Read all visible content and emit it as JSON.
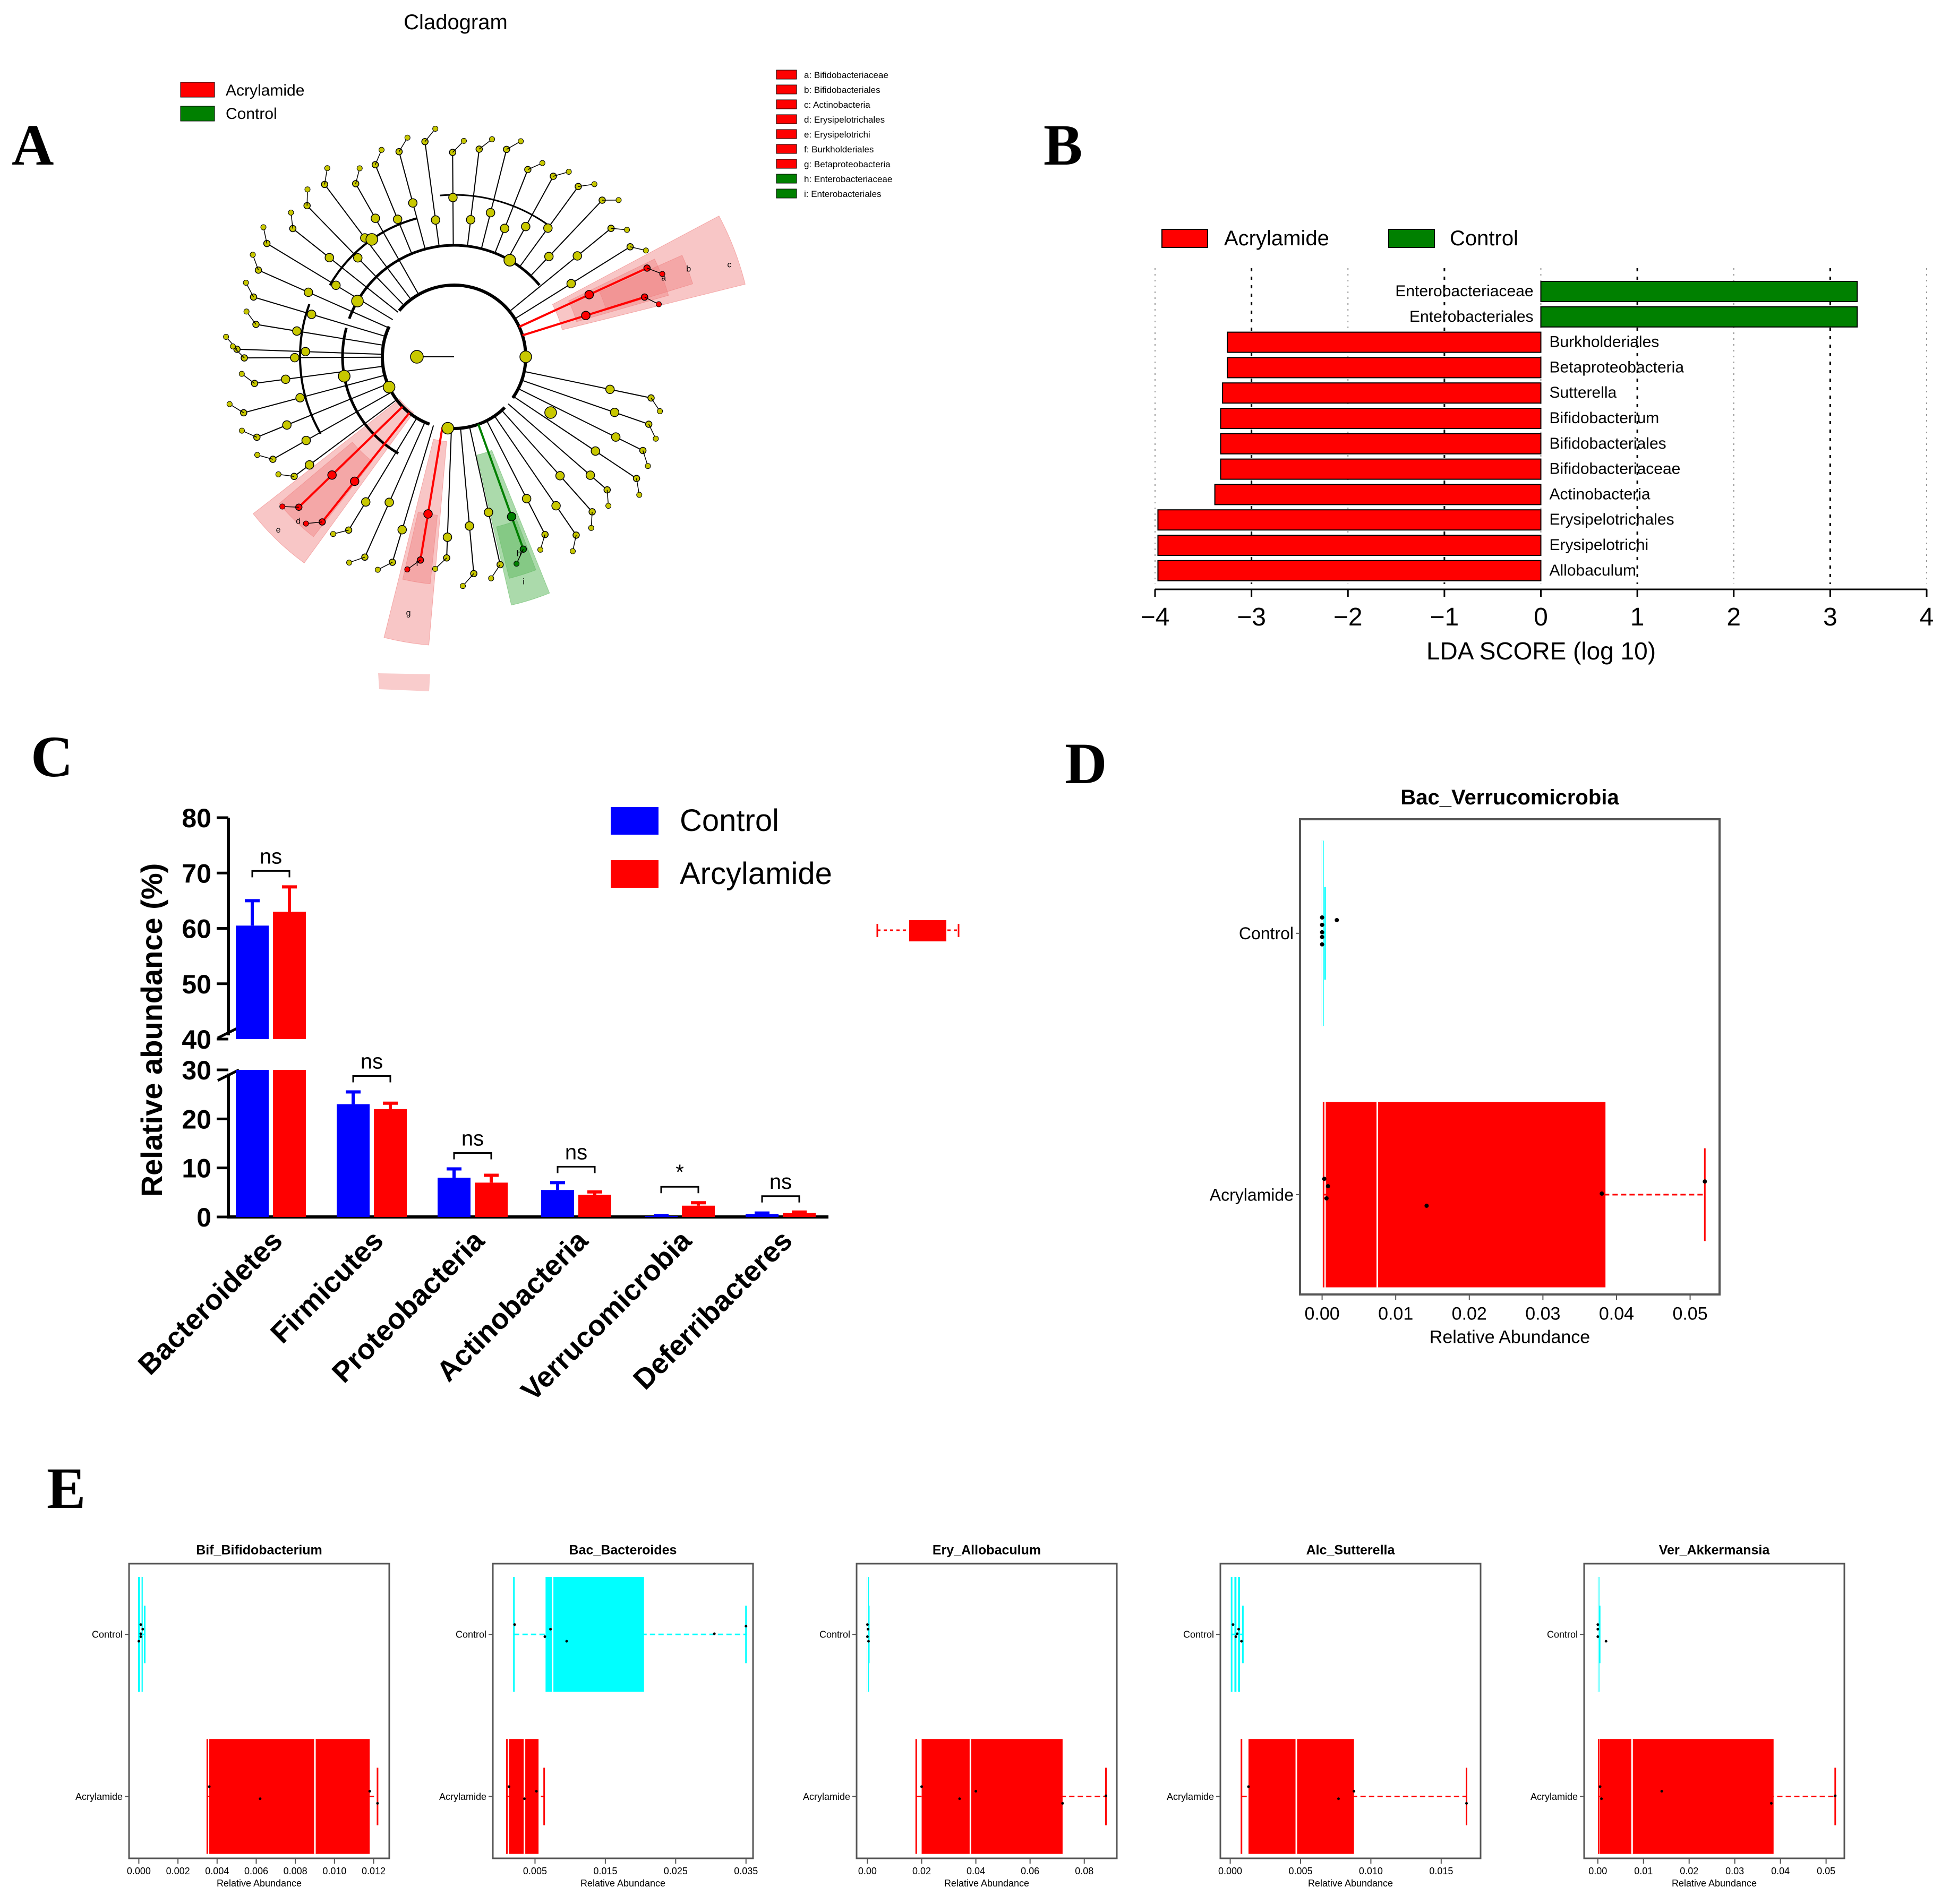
{
  "colors": {
    "acrylamide": "#ff0000",
    "control": "#008000",
    "control_bar": "#0000ff",
    "box_control": "#00ffff",
    "node": "#c8c800",
    "highlight_red": "#f08080",
    "highlight_green": "#66bb66"
  },
  "panels": {
    "A": "A",
    "B": "B",
    "C": "C",
    "D": "D",
    "E": "E"
  },
  "panel_a": {
    "title": "Cladogram",
    "legend": [
      "Acrylamide",
      "Control"
    ],
    "taxa_key": [
      {
        "label": "a: Bifidobacteriaceae",
        "group": "Acrylamide"
      },
      {
        "label": "b: Bifidobacteriales",
        "group": "Acrylamide"
      },
      {
        "label": "c: Actinobacteria",
        "group": "Acrylamide"
      },
      {
        "label": "d: Erysipelotrichales",
        "group": "Acrylamide"
      },
      {
        "label": "e: Erysipelotrichi",
        "group": "Acrylamide"
      },
      {
        "label": "f: Burkholderiales",
        "group": "Acrylamide"
      },
      {
        "label": "g: Betaproteobacteria",
        "group": "Acrylamide"
      },
      {
        "label": "h: Enterobacteriaceae",
        "group": "Control"
      },
      {
        "label": "i: Enterobacteriales",
        "group": "Control"
      }
    ],
    "wedge_letters": [
      "a",
      "b",
      "c",
      "d",
      "e",
      "f",
      "g",
      "h",
      "i"
    ]
  },
  "chart_data": [
    {
      "id": "B",
      "type": "bar",
      "orientation": "horizontal",
      "legend": [
        "Acrylamide",
        "Control"
      ],
      "xlabel": "LDA SCORE (log 10)",
      "xlim": [
        -4,
        4
      ],
      "xticks": [
        -4,
        -3,
        -2,
        -1,
        0,
        1,
        2,
        3,
        4
      ],
      "bars": [
        {
          "label": "Enterobacteriaceae",
          "value": 3.28,
          "group": "Control"
        },
        {
          "label": "Enterobacteriales",
          "value": 3.28,
          "group": "Control"
        },
        {
          "label": "Burkholderiales",
          "value": -3.25,
          "group": "Acrylamide"
        },
        {
          "label": "Betaproteobacteria",
          "value": -3.25,
          "group": "Acrylamide"
        },
        {
          "label": "Sutterella",
          "value": -3.3,
          "group": "Acrylamide"
        },
        {
          "label": "Bifidobacterium",
          "value": -3.32,
          "group": "Acrylamide"
        },
        {
          "label": "Bifidobacteriales",
          "value": -3.32,
          "group": "Acrylamide"
        },
        {
          "label": "Bifidobacteriaceae",
          "value": -3.32,
          "group": "Acrylamide"
        },
        {
          "label": "Actinobacteria",
          "value": -3.38,
          "group": "Acrylamide"
        },
        {
          "label": "Erysipelotrichales",
          "value": -3.97,
          "group": "Acrylamide"
        },
        {
          "label": "Erysipelotrichi",
          "value": -3.97,
          "group": "Acrylamide"
        },
        {
          "label": "Allobaculum",
          "value": -3.97,
          "group": "Acrylamide"
        }
      ]
    },
    {
      "id": "C",
      "type": "bar",
      "ylabel": "Relative abundance (%)",
      "ylim": [
        0,
        80
      ],
      "axis_break": [
        30,
        40
      ],
      "yticks": [
        0,
        10,
        20,
        30,
        40,
        50,
        60,
        70,
        80
      ],
      "categories": [
        "Bacteroidetes",
        "Firmicutes",
        "Proteobacteria",
        "Actinobacteria",
        "Verrucomicrobia",
        "Deferribacteres"
      ],
      "series": [
        {
          "name": "Control",
          "values": [
            60.5,
            23,
            8,
            5.5,
            0.2,
            0.6
          ],
          "errors": [
            4.5,
            2.5,
            1.8,
            1.5,
            0.1,
            0.2
          ]
        },
        {
          "name": "Arcylamide",
          "values": [
            63,
            22,
            7,
            4.5,
            2.3,
            0.8
          ],
          "errors": [
            4.5,
            1.2,
            1.5,
            0.6,
            0.6,
            0.2
          ]
        }
      ],
      "significance": [
        "ns",
        "ns",
        "ns",
        "ns",
        "*",
        "ns"
      ]
    },
    {
      "id": "D",
      "type": "box",
      "title": "Bac_Verrucomicrobia",
      "xlabel": "Relative Abundance",
      "xlim": [
        -0.003,
        0.054
      ],
      "xticks": [
        0.0,
        0.01,
        0.02,
        0.03,
        0.04,
        0.05
      ],
      "tick_labels": [
        "0.00",
        "0.01",
        "0.02",
        "0.03",
        "0.04",
        "0.05"
      ],
      "groups": [
        {
          "name": "Control",
          "min": 0.0,
          "q1": 0.0,
          "median": 0.0,
          "q3": 0.0002,
          "max": 0.0004,
          "points": [
            0.0,
            0.0,
            0.0,
            0.0,
            0.0,
            0.002
          ]
        },
        {
          "name": "Acrylamide",
          "min": 0.0002,
          "q1": 0.0005,
          "median": 0.0075,
          "q3": 0.0385,
          "max": 0.052,
          "points": [
            0.0003,
            0.0006,
            0.0008,
            0.0142,
            0.038,
            0.052
          ]
        }
      ]
    },
    {
      "id": "E1",
      "type": "box",
      "title": "Bif_Bifidobacterium",
      "xlabel": "Relative Abundance",
      "xlim": [
        -0.0005,
        0.0128
      ],
      "xticks": [
        0.0,
        0.002,
        0.004,
        0.006,
        0.008,
        0.01,
        0.012
      ],
      "tick_labels": [
        "0.000",
        "0.002",
        "0.004",
        "0.006",
        "0.008",
        "0.010",
        "0.012"
      ],
      "groups": [
        {
          "name": "Control",
          "min": 0.0,
          "q1": 0.0,
          "median": 0.0001,
          "q3": 0.0002,
          "max": 0.0003,
          "points": [
            0.0001,
            0.0001,
            0.0002,
            0.0,
            0.0001
          ]
        },
        {
          "name": "Acrylamide",
          "min": 0.0035,
          "q1": 0.0036,
          "median": 0.009,
          "q3": 0.0118,
          "max": 0.0122,
          "points": [
            0.0036,
            0.0062,
            0.0118,
            0.0122
          ]
        }
      ]
    },
    {
      "id": "E2",
      "type": "box",
      "title": "Bac_Bacteroides",
      "xlabel": "Relative Abundance",
      "xlim": [
        -0.001,
        0.036
      ],
      "xticks": [
        0.005,
        0.015,
        0.025,
        0.035
      ],
      "tick_labels": [
        "0.005",
        "0.015",
        "0.025",
        "0.035"
      ],
      "groups": [
        {
          "name": "Control",
          "min": 0.002,
          "q1": 0.0065,
          "median": 0.0075,
          "q3": 0.0205,
          "max": 0.035,
          "points": [
            0.0021,
            0.0064,
            0.0072,
            0.0095,
            0.0305,
            0.035
          ]
        },
        {
          "name": "Acrylamide",
          "min": 0.001,
          "q1": 0.0013,
          "median": 0.0035,
          "q3": 0.0055,
          "max": 0.0063,
          "points": [
            0.0013,
            0.0035,
            0.0052
          ]
        }
      ]
    },
    {
      "id": "E3",
      "type": "box",
      "title": "Ery_Allobaculum",
      "xlabel": "Relative Abundance",
      "xlim": [
        -0.004,
        0.092
      ],
      "xticks": [
        0.0,
        0.02,
        0.04,
        0.06,
        0.08
      ],
      "tick_labels": [
        "0.00",
        "0.02",
        "0.04",
        "0.06",
        "0.08"
      ],
      "groups": [
        {
          "name": "Control",
          "min": 0.0,
          "q1": 0.0,
          "median": 0.0,
          "q3": 0.0003,
          "max": 0.0005,
          "points": [
            0.0,
            0.0,
            0.0002,
            0.0004
          ]
        },
        {
          "name": "Acrylamide",
          "min": 0.018,
          "q1": 0.02,
          "median": 0.038,
          "q3": 0.072,
          "max": 0.088,
          "points": [
            0.02,
            0.034,
            0.04,
            0.072,
            0.088
          ]
        }
      ]
    },
    {
      "id": "E4",
      "type": "box",
      "title": "Alc_Sutterella",
      "xlabel": "Relative Abundance",
      "xlim": [
        -0.0007,
        0.0178
      ],
      "xticks": [
        0.0,
        0.005,
        0.01,
        0.015
      ],
      "tick_labels": [
        "0.000",
        "0.005",
        "0.010",
        "0.015"
      ],
      "groups": [
        {
          "name": "Control",
          "min": 0.0001,
          "q1": 0.0003,
          "median": 0.0005,
          "q3": 0.0007,
          "max": 0.0009,
          "points": [
            0.0002,
            0.0004,
            0.0006,
            0.0008,
            0.0005
          ]
        },
        {
          "name": "Acrylamide",
          "min": 0.0008,
          "q1": 0.0013,
          "median": 0.0047,
          "q3": 0.0088,
          "max": 0.0168,
          "points": [
            0.0013,
            0.0077,
            0.0088,
            0.0168
          ]
        }
      ]
    },
    {
      "id": "E5",
      "type": "box",
      "title": "Ver_Akkermansia",
      "xlabel": "Relative Abundance",
      "xlim": [
        -0.003,
        0.054
      ],
      "xticks": [
        0.0,
        0.01,
        0.02,
        0.03,
        0.04,
        0.05
      ],
      "tick_labels": [
        "0.00",
        "0.01",
        "0.02",
        "0.03",
        "0.04",
        "0.05"
      ],
      "groups": [
        {
          "name": "Control",
          "min": 0.0,
          "q1": 0.0,
          "median": 0.0,
          "q3": 0.0002,
          "max": 0.0004,
          "points": [
            0.0,
            0.0,
            0.0,
            0.0018
          ]
        },
        {
          "name": "Acrylamide",
          "min": 0.0002,
          "q1": 0.0005,
          "median": 0.0075,
          "q3": 0.0385,
          "max": 0.052,
          "points": [
            0.0005,
            0.0008,
            0.014,
            0.038,
            0.052
          ]
        }
      ]
    }
  ]
}
